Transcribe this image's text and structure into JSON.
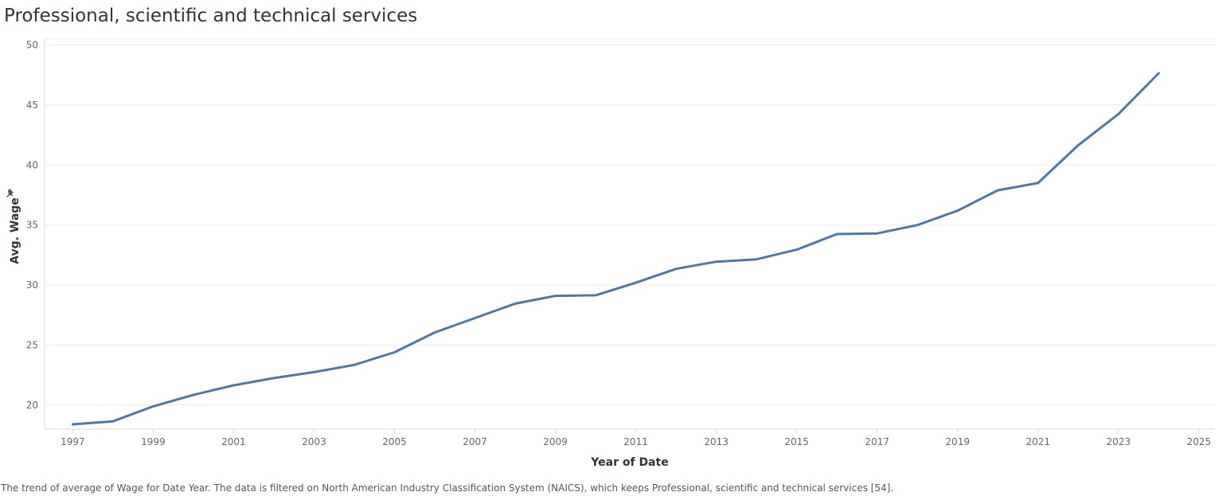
{
  "title": "Professional, scientific and technical services",
  "caption": "The trend of average of Wage for Date Year.  The data is filtered on North American Industry Classification System (NAICS), which keeps Professional, scientific and technical services [54].",
  "colors": {
    "line": "#4e79a7",
    "grid": "#ebebeb",
    "axis": "#d9d9d9",
    "pin_icon": "#555555"
  },
  "chart_data": {
    "type": "line",
    "title": "Professional, scientific and technical services",
    "xlabel": "Year of Date",
    "ylabel": "Avg. Wage",
    "xlim": [
      1996.3,
      2025.4
    ],
    "ylim": [
      18.0,
      50.5
    ],
    "x_ticks": [
      "1997",
      "1999",
      "2001",
      "2003",
      "2005",
      "2007",
      "2009",
      "2011",
      "2013",
      "2015",
      "2017",
      "2019",
      "2021",
      "2023",
      "2025"
    ],
    "y_ticks": [
      "20",
      "25",
      "30",
      "35",
      "40",
      "45",
      "50"
    ],
    "grid": "horizontal",
    "series": [
      {
        "x": [
          1997,
          1998,
          1999,
          2000,
          2001,
          2002,
          2003,
          2004,
          2005,
          2006,
          2007,
          2008,
          2009,
          2010,
          2011,
          2012,
          2013,
          2014,
          2015,
          2016,
          2017,
          2018,
          2019,
          2020,
          2021,
          2022,
          2023,
          2024
        ],
        "values": [
          18.4,
          18.65,
          19.9,
          20.85,
          21.65,
          22.25,
          22.75,
          23.35,
          24.4,
          26.05,
          27.25,
          28.45,
          29.1,
          29.15,
          30.2,
          31.35,
          31.95,
          32.15,
          32.95,
          34.25,
          34.3,
          35.0,
          36.2,
          37.9,
          38.5,
          41.65,
          44.25,
          47.65
        ]
      }
    ]
  },
  "icons": {
    "axis_pin": "pin-icon"
  }
}
